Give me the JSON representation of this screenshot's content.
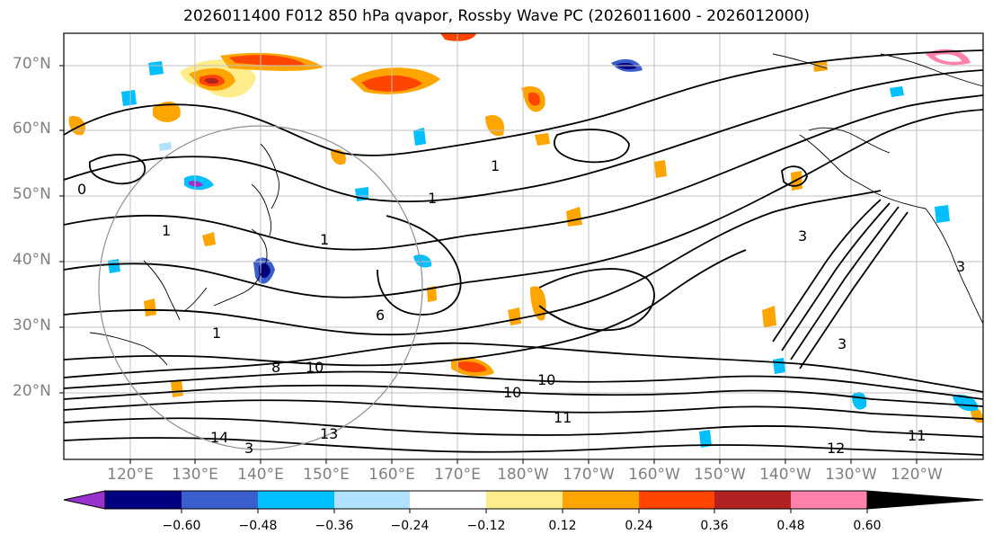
{
  "title": "2026011400 F012 850 hPa qvapor, Rossby Wave PC (2026011600 - 2026012000)",
  "lat_labels": [
    "70°N",
    "60°N",
    "50°N",
    "40°N",
    "30°N",
    "20°N"
  ],
  "lon_labels": [
    "120°E",
    "130°E",
    "140°E",
    "150°E",
    "160°E",
    "170°E",
    "180°W",
    "170°W",
    "160°W",
    "150°W",
    "140°W",
    "130°W",
    "120°W"
  ],
  "colorbar": {
    "ticks": [
      "−0.60",
      "−0.48",
      "−0.36",
      "−0.24",
      "−0.12",
      "0.12",
      "0.24",
      "0.36",
      "0.48",
      "0.60"
    ],
    "colors": [
      "#9932cc",
      "#000080",
      "#3a5fcd",
      "#00bfff",
      "#b0e2ff",
      "#ffffff",
      "#ffec8b",
      "#ffa500",
      "#ff4500",
      "#b22222",
      "#ff82ab"
    ]
  },
  "contour_labels": [
    "0",
    "1",
    "1",
    "1",
    "1",
    "1",
    "3",
    "3",
    "3",
    "6",
    "8",
    "10",
    "10",
    "11",
    "12",
    "13",
    "14",
    "10",
    "11",
    "3"
  ],
  "colors": {
    "label_gray": "#808080",
    "grid": "#c0c0c0",
    "contour": "#000000"
  }
}
